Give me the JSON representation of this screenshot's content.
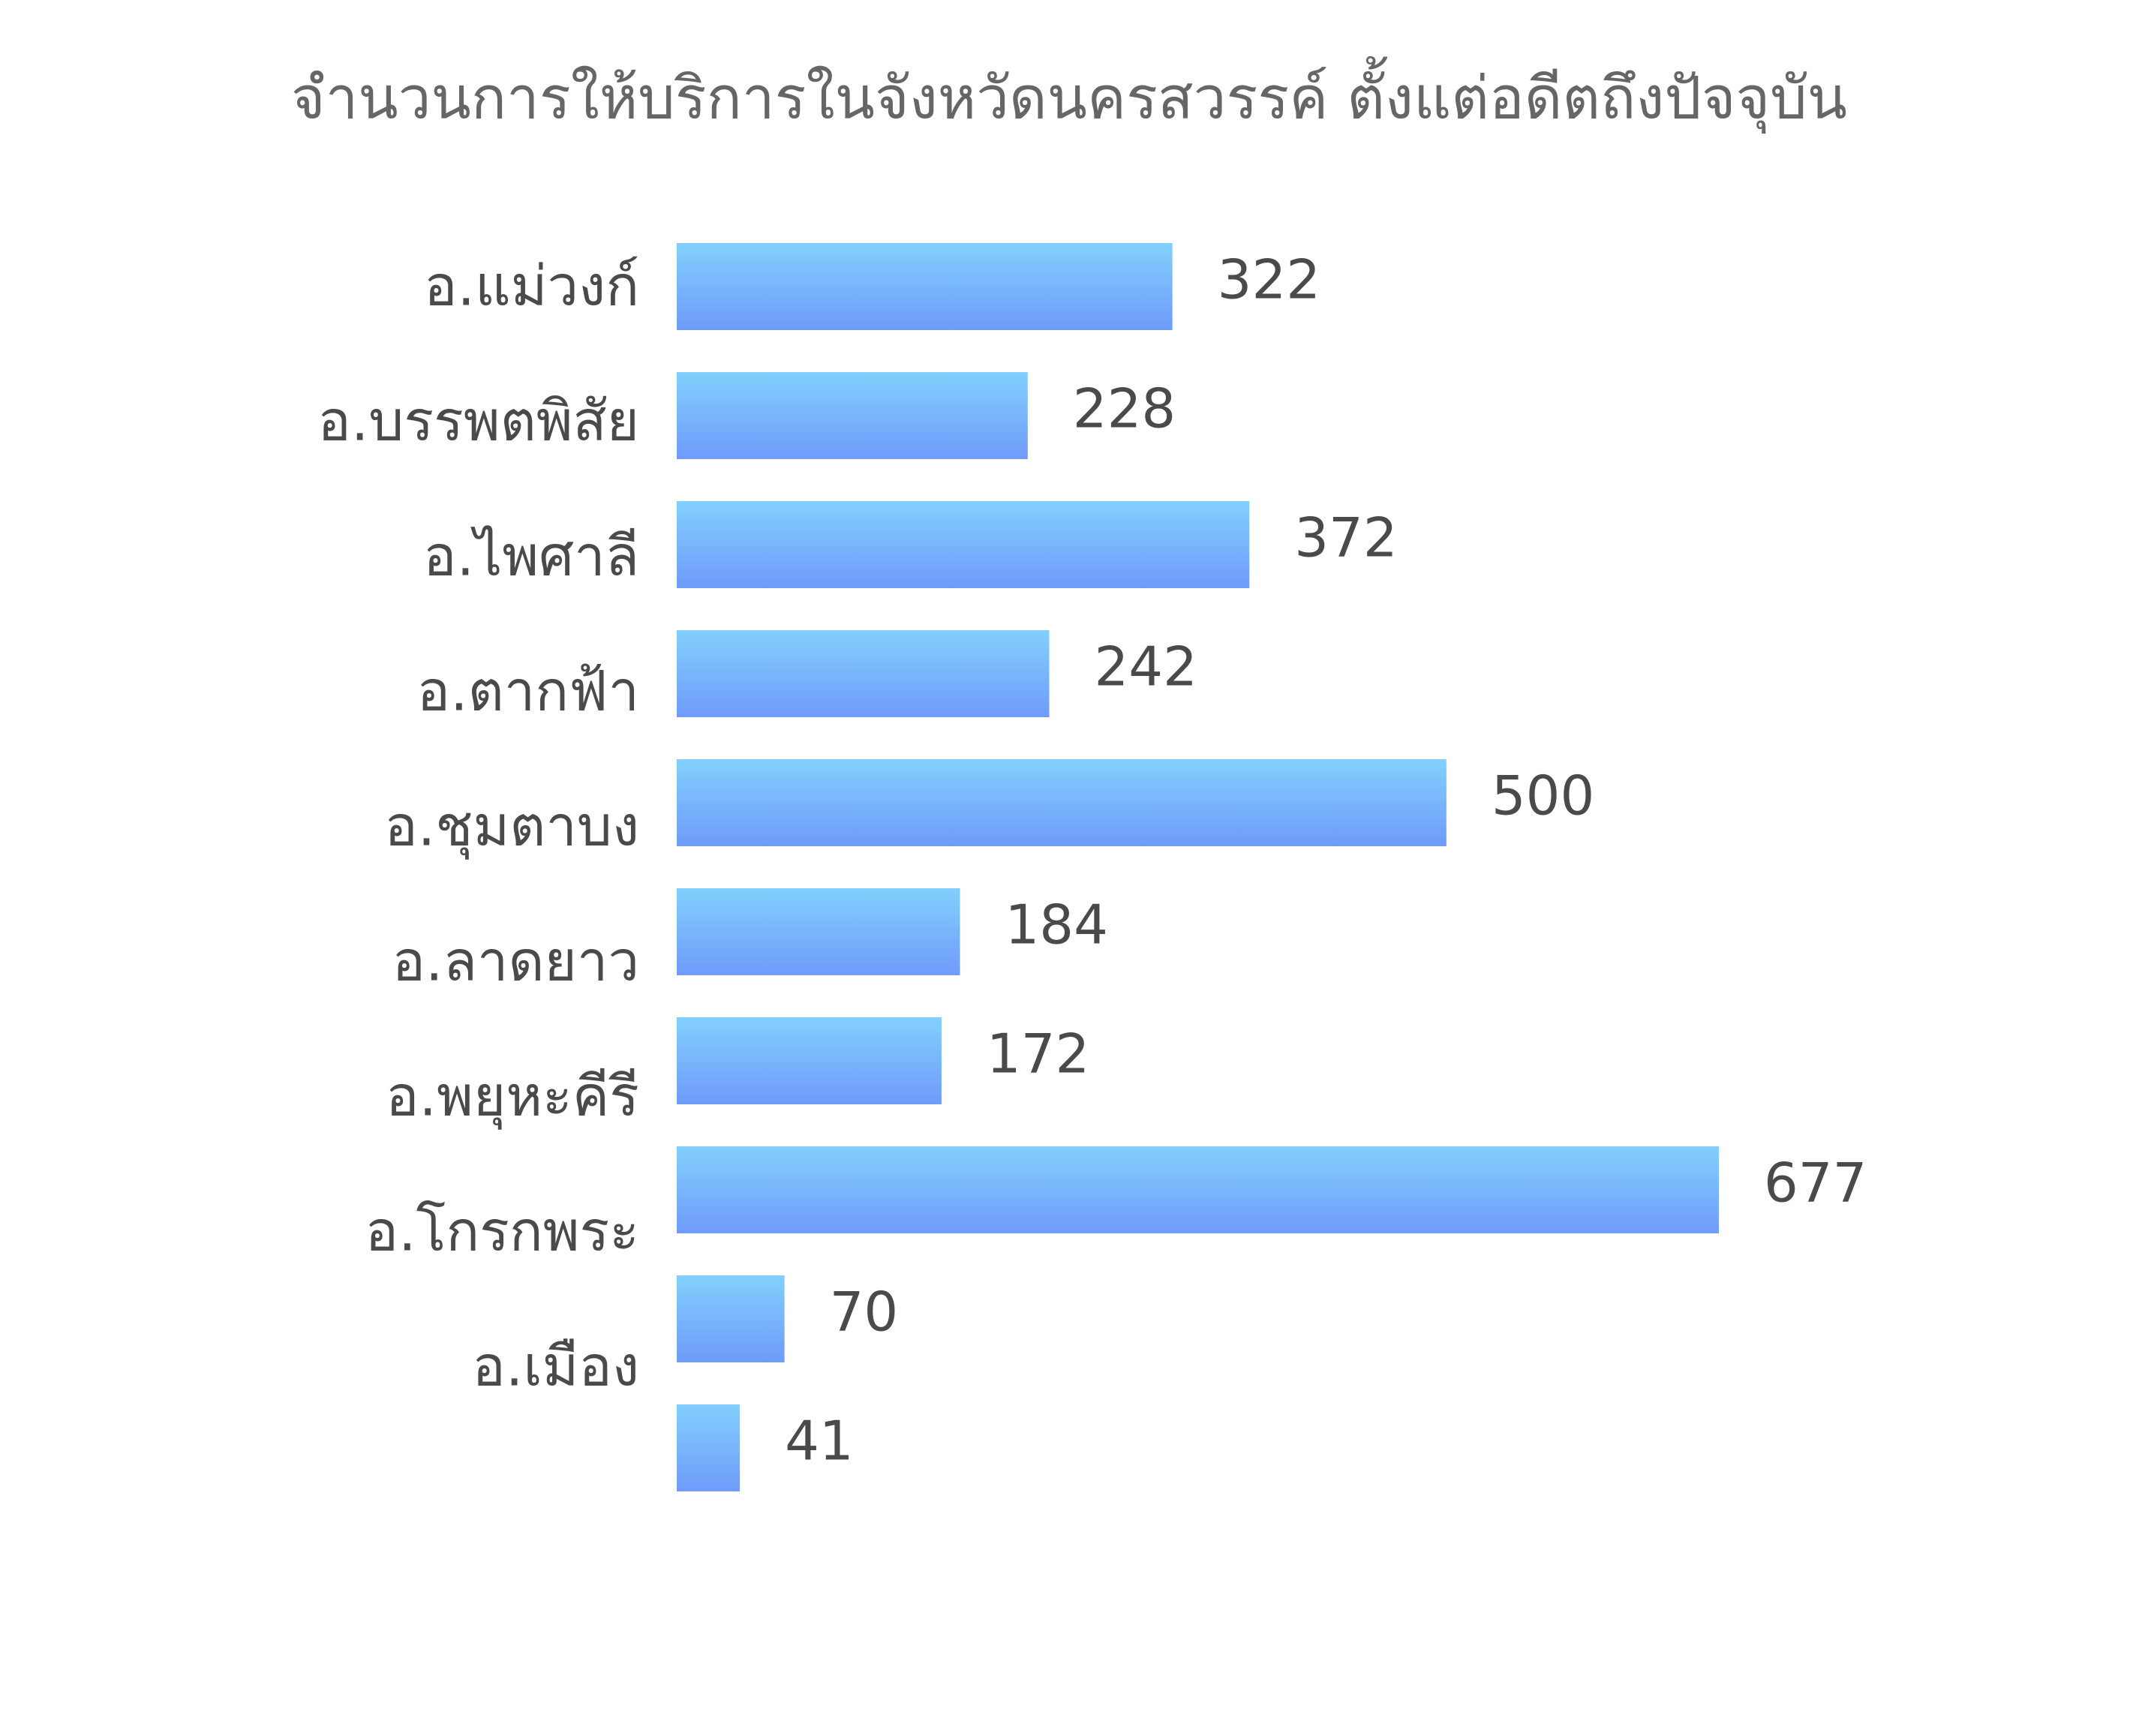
{
  "chart_data": {
    "type": "barh",
    "title": "จำนวนการให้บริการในจังหวัดนครสวรรค์ ตั้งแต่อดีตถึงปัจจุบัน",
    "categories": [
      "อ.แม่วงก์",
      "อ.บรรพตพิสัย",
      "อ.ไพศาลี",
      "อ.ตากฟ้า",
      "อ.ชุมตาบง",
      "อ.ลาดยาว",
      "อ.พยุหะคีรี",
      "อ.โกรกพระ",
      "อ.เมือง",
      null
    ],
    "values": [
      322,
      228,
      372,
      242,
      500,
      184,
      172,
      677,
      70,
      41
    ],
    "colors": [
      "#82d0fd",
      "#6f9bfa"
    ]
  }
}
